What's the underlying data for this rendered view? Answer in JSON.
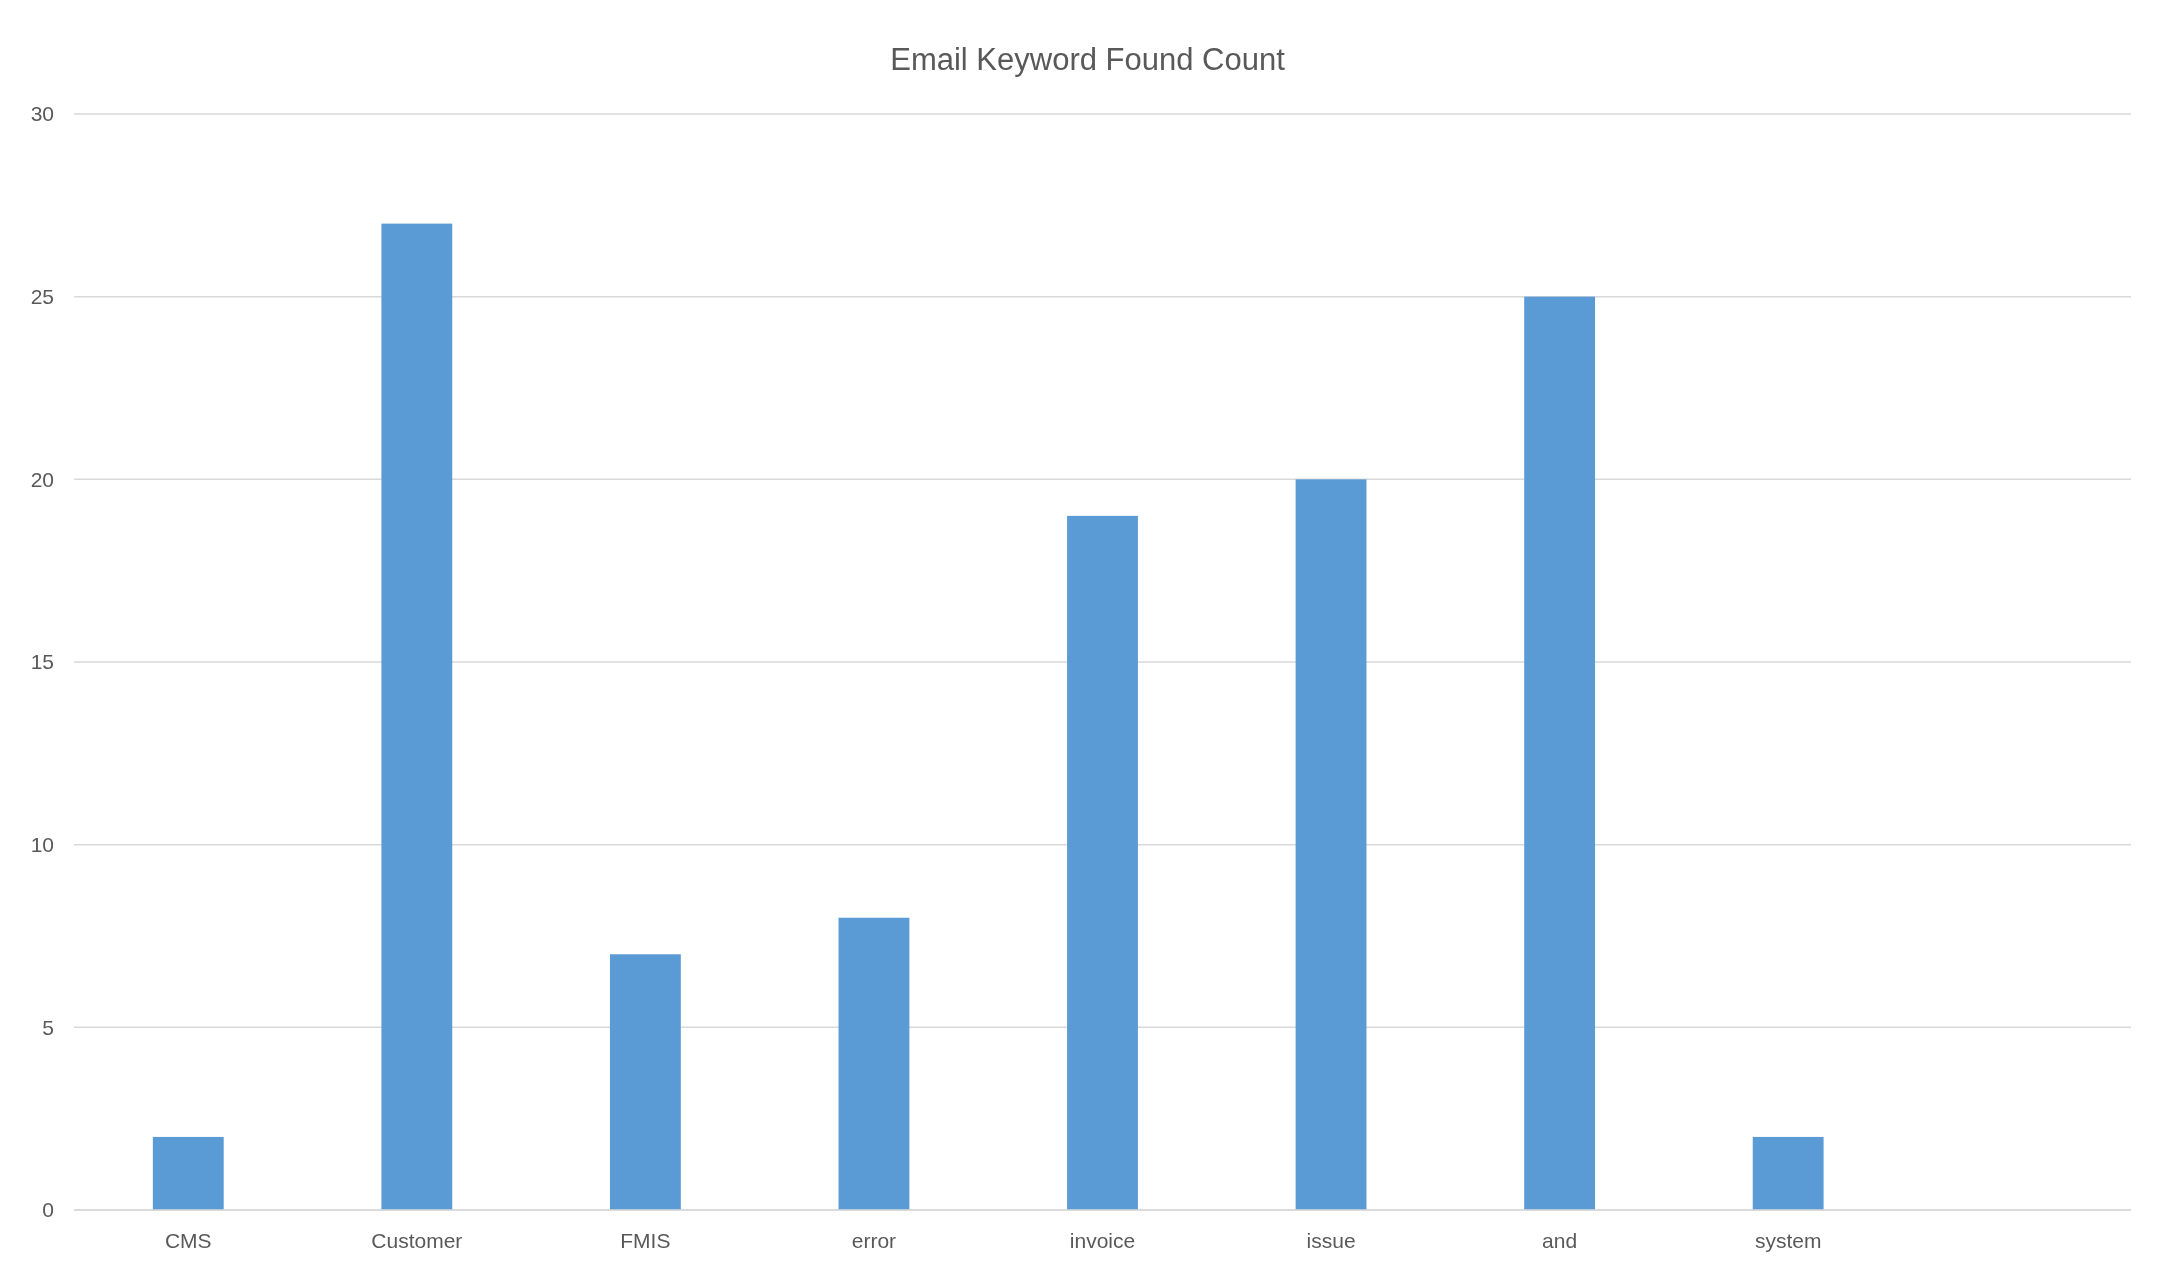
{
  "chart_data": {
    "type": "bar",
    "title": "Email Keyword Found Count",
    "categories": [
      "CMS",
      "Customer",
      "FMIS",
      "error",
      "invoice",
      "issue",
      "and",
      "system",
      null
    ],
    "values": [
      2,
      27,
      7,
      8,
      19,
      20,
      25,
      2,
      0
    ],
    "color": "#5b9bd5",
    "ylim": [
      0,
      30
    ],
    "yticks": [
      0,
      5,
      10,
      15,
      20,
      25,
      30
    ],
    "grid": "y"
  }
}
